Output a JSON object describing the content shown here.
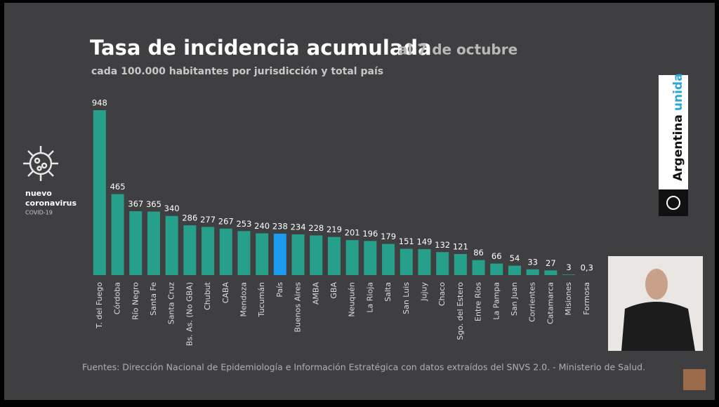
{
  "chart_data": {
    "type": "bar",
    "title": "Tasa de incidencia acumulada",
    "subtitle": "al 7 de octubre",
    "description": "cada 100.000 habitantes por jurisdicción y total país",
    "source": "Fuentes: Dirección Nacional de Epidemiología e Información Estratégica con datos extraídos del SNVS 2.0. - Ministerio de Salud.",
    "categories": [
      "T. del Fuego",
      "Córdoba",
      "Río Negro",
      "Santa Fe",
      "Santa Cruz",
      "Bs. As. (No GBA)",
      "Chubut",
      "CABA",
      "Mendoza",
      "Tucumán",
      "País",
      "Buenos Aires",
      "AMBA",
      "GBA",
      "Neuquén",
      "La Rioja",
      "Salta",
      "San Luis",
      "Jujuy",
      "Chaco",
      "Sgo. del Estero",
      "Entre Ríos",
      "La Pampa",
      "San Juan",
      "Corrientes",
      "Catamarca",
      "Misiones",
      "Formosa"
    ],
    "values": [
      948,
      465,
      367,
      365,
      340,
      286,
      277,
      267,
      253,
      240,
      238,
      234,
      228,
      219,
      201,
      196,
      179,
      151,
      149,
      132,
      121,
      86,
      66,
      54,
      33,
      27,
      3,
      0.3
    ],
    "value_labels": [
      "948",
      "465",
      "367",
      "365",
      "340",
      "286",
      "277",
      "267",
      "253",
      "240",
      "238",
      "234",
      "228",
      "219",
      "201",
      "196",
      "179",
      "151",
      "149",
      "132",
      "121",
      "86",
      "66",
      "54",
      "33",
      "27",
      "3",
      "0,3"
    ],
    "colors": [
      "#27a08b",
      "#27a08b",
      "#27a08b",
      "#27a08b",
      "#27a08b",
      "#27a08b",
      "#27a08b",
      "#27a08b",
      "#27a08b",
      "#27a08b",
      "#1b9cf0",
      "#27a08b",
      "#27a08b",
      "#27a08b",
      "#27a08b",
      "#27a08b",
      "#27a08b",
      "#27a08b",
      "#27a08b",
      "#27a08b",
      "#27a08b",
      "#27a08b",
      "#27a08b",
      "#27a08b",
      "#27a08b",
      "#27a08b",
      "#27a08b",
      "#27a08b"
    ]
  },
  "logo": {
    "line1": "nuevo",
    "line2": "coronavirus",
    "line3": "COVID-19"
  },
  "brand": {
    "word1": "Argentina",
    "word2": "unida"
  }
}
